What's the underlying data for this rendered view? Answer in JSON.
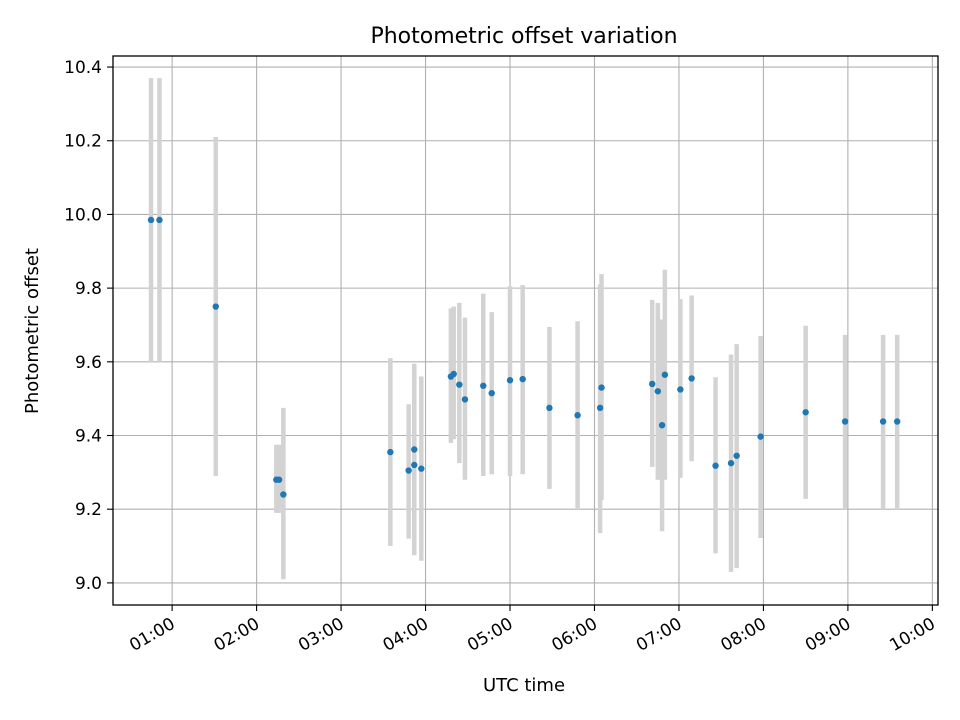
{
  "chart_data": {
    "type": "scatter",
    "title": "Photometric offset variation",
    "xlabel": "UTC time",
    "ylabel": "Photometric offset",
    "x_unit": "UTC time (HH:MM)",
    "xlim": [
      "00:18",
      "10:04"
    ],
    "ylim": [
      8.94,
      10.43
    ],
    "grid": true,
    "x_ticks": [
      {
        "time": "01:00",
        "label": "01:00"
      },
      {
        "time": "02:00",
        "label": "02:00"
      },
      {
        "time": "03:00",
        "label": "03:00"
      },
      {
        "time": "04:00",
        "label": "04:00"
      },
      {
        "time": "05:00",
        "label": "05:00"
      },
      {
        "time": "06:00",
        "label": "06:00"
      },
      {
        "time": "07:00",
        "label": "07:00"
      },
      {
        "time": "08:00",
        "label": "08:00"
      },
      {
        "time": "09:00",
        "label": "09:00"
      },
      {
        "time": "10:00",
        "label": "10:00"
      }
    ],
    "y_ticks": [
      {
        "value": 9.0,
        "label": "9.0"
      },
      {
        "value": 9.2,
        "label": "9.2"
      },
      {
        "value": 9.4,
        "label": "9.4"
      },
      {
        "value": 9.6,
        "label": "9.6"
      },
      {
        "value": 9.8,
        "label": "9.8"
      },
      {
        "value": 10.0,
        "label": "10.0"
      },
      {
        "value": 10.2,
        "label": "10.2"
      },
      {
        "value": 10.4,
        "label": "10.4"
      }
    ],
    "colors": {
      "marker": "#1f77b4",
      "errorbar": "#d3d3d3",
      "grid": "#b0b0b0"
    },
    "points": [
      {
        "time": "00:45",
        "y": 9.985,
        "ylo": 9.6,
        "yhi": 10.37
      },
      {
        "time": "00:51",
        "y": 9.985,
        "ylo": 9.6,
        "yhi": 10.37
      },
      {
        "time": "01:31",
        "y": 9.75,
        "ylo": 9.29,
        "yhi": 10.21
      },
      {
        "time": "02:14",
        "y": 9.28,
        "ylo": 9.19,
        "yhi": 9.375
      },
      {
        "time": "02:16",
        "y": 9.28,
        "ylo": 9.19,
        "yhi": 9.375
      },
      {
        "time": "02:19",
        "y": 9.24,
        "ylo": 9.01,
        "yhi": 9.475
      },
      {
        "time": "03:35",
        "y": 9.355,
        "ylo": 9.1,
        "yhi": 9.61
      },
      {
        "time": "03:48",
        "y": 9.305,
        "ylo": 9.12,
        "yhi": 9.485
      },
      {
        "time": "03:52",
        "y": 9.362,
        "ylo": 9.125,
        "yhi": 9.595
      },
      {
        "time": "03:52",
        "y": 9.32,
        "ylo": 9.075,
        "yhi": 9.565
      },
      {
        "time": "03:57",
        "y": 9.31,
        "ylo": 9.06,
        "yhi": 9.56
      },
      {
        "time": "04:18",
        "y": 9.56,
        "ylo": 9.38,
        "yhi": 9.745
      },
      {
        "time": "04:20",
        "y": 9.567,
        "ylo": 9.39,
        "yhi": 9.75
      },
      {
        "time": "04:24",
        "y": 9.538,
        "ylo": 9.325,
        "yhi": 9.76
      },
      {
        "time": "04:28",
        "y": 9.498,
        "ylo": 9.28,
        "yhi": 9.72
      },
      {
        "time": "04:41",
        "y": 9.535,
        "ylo": 9.29,
        "yhi": 9.785
      },
      {
        "time": "04:47",
        "y": 9.515,
        "ylo": 9.295,
        "yhi": 9.735
      },
      {
        "time": "05:00",
        "y": 9.55,
        "ylo": 9.29,
        "yhi": 9.805
      },
      {
        "time": "05:09",
        "y": 9.553,
        "ylo": 9.295,
        "yhi": 9.808
      },
      {
        "time": "05:28",
        "y": 9.475,
        "ylo": 9.255,
        "yhi": 9.695
      },
      {
        "time": "05:48",
        "y": 9.455,
        "ylo": 9.2,
        "yhi": 9.71
      },
      {
        "time": "06:04",
        "y": 9.475,
        "ylo": 9.135,
        "yhi": 9.81
      },
      {
        "time": "06:05",
        "y": 9.53,
        "ylo": 9.225,
        "yhi": 9.838
      },
      {
        "time": "06:41",
        "y": 9.54,
        "ylo": 9.315,
        "yhi": 9.768
      },
      {
        "time": "06:45",
        "y": 9.52,
        "ylo": 9.28,
        "yhi": 9.76
      },
      {
        "time": "06:48",
        "y": 9.428,
        "ylo": 9.14,
        "yhi": 9.715
      },
      {
        "time": "06:50",
        "y": 9.565,
        "ylo": 9.28,
        "yhi": 9.85
      },
      {
        "time": "07:01",
        "y": 9.525,
        "ylo": 9.285,
        "yhi": 9.77
      },
      {
        "time": "07:09",
        "y": 9.555,
        "ylo": 9.33,
        "yhi": 9.78
      },
      {
        "time": "07:26",
        "y": 9.318,
        "ylo": 9.08,
        "yhi": 9.558
      },
      {
        "time": "07:37",
        "y": 9.325,
        "ylo": 9.03,
        "yhi": 9.62
      },
      {
        "time": "07:41",
        "y": 9.345,
        "ylo": 9.04,
        "yhi": 9.648
      },
      {
        "time": "07:58",
        "y": 9.397,
        "ylo": 9.122,
        "yhi": 9.67
      },
      {
        "time": "08:30",
        "y": 9.463,
        "ylo": 9.228,
        "yhi": 9.698
      },
      {
        "time": "08:58",
        "y": 9.438,
        "ylo": 9.2,
        "yhi": 9.673
      },
      {
        "time": "09:25",
        "y": 9.438,
        "ylo": 9.2,
        "yhi": 9.673
      },
      {
        "time": "09:35",
        "y": 9.438,
        "ylo": 9.2,
        "yhi": 9.673
      }
    ]
  }
}
